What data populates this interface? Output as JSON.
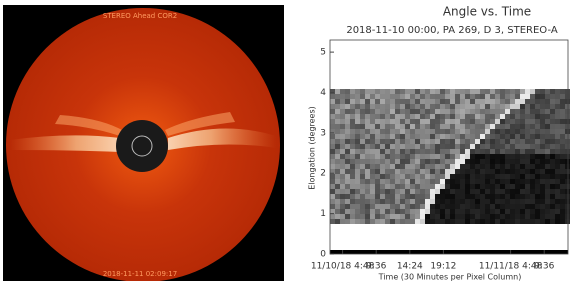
{
  "left_panel": {
    "label_top": "STEREO Ahead COR2",
    "label_bottom": "2018-11-11 02:09:17"
  },
  "chart_data": {
    "type": "jmap",
    "title": "Angle vs. Time",
    "subtitle": "2018-11-10 00:00, PA 269, D 3, STEREO-A",
    "y_label": "Elongation (degrees)",
    "x_label": "Time (30 Minutes per Pixel Column)",
    "ylim": [
      0,
      5.3
    ],
    "yticks": [
      0,
      1,
      2,
      3,
      4,
      5
    ],
    "xlim": [
      3,
      37
    ],
    "xticks": [
      {
        "value": 4.8,
        "label": "11/10/18 4:48"
      },
      {
        "value": 9.6,
        "label": "9:36"
      },
      {
        "value": 14.4,
        "label": "14:24"
      },
      {
        "value": 19.2,
        "label": "19:12"
      },
      {
        "value": 28.8,
        "label": "11/11/18 4:48"
      },
      {
        "value": 33.6,
        "label": "9:36"
      }
    ]
  }
}
